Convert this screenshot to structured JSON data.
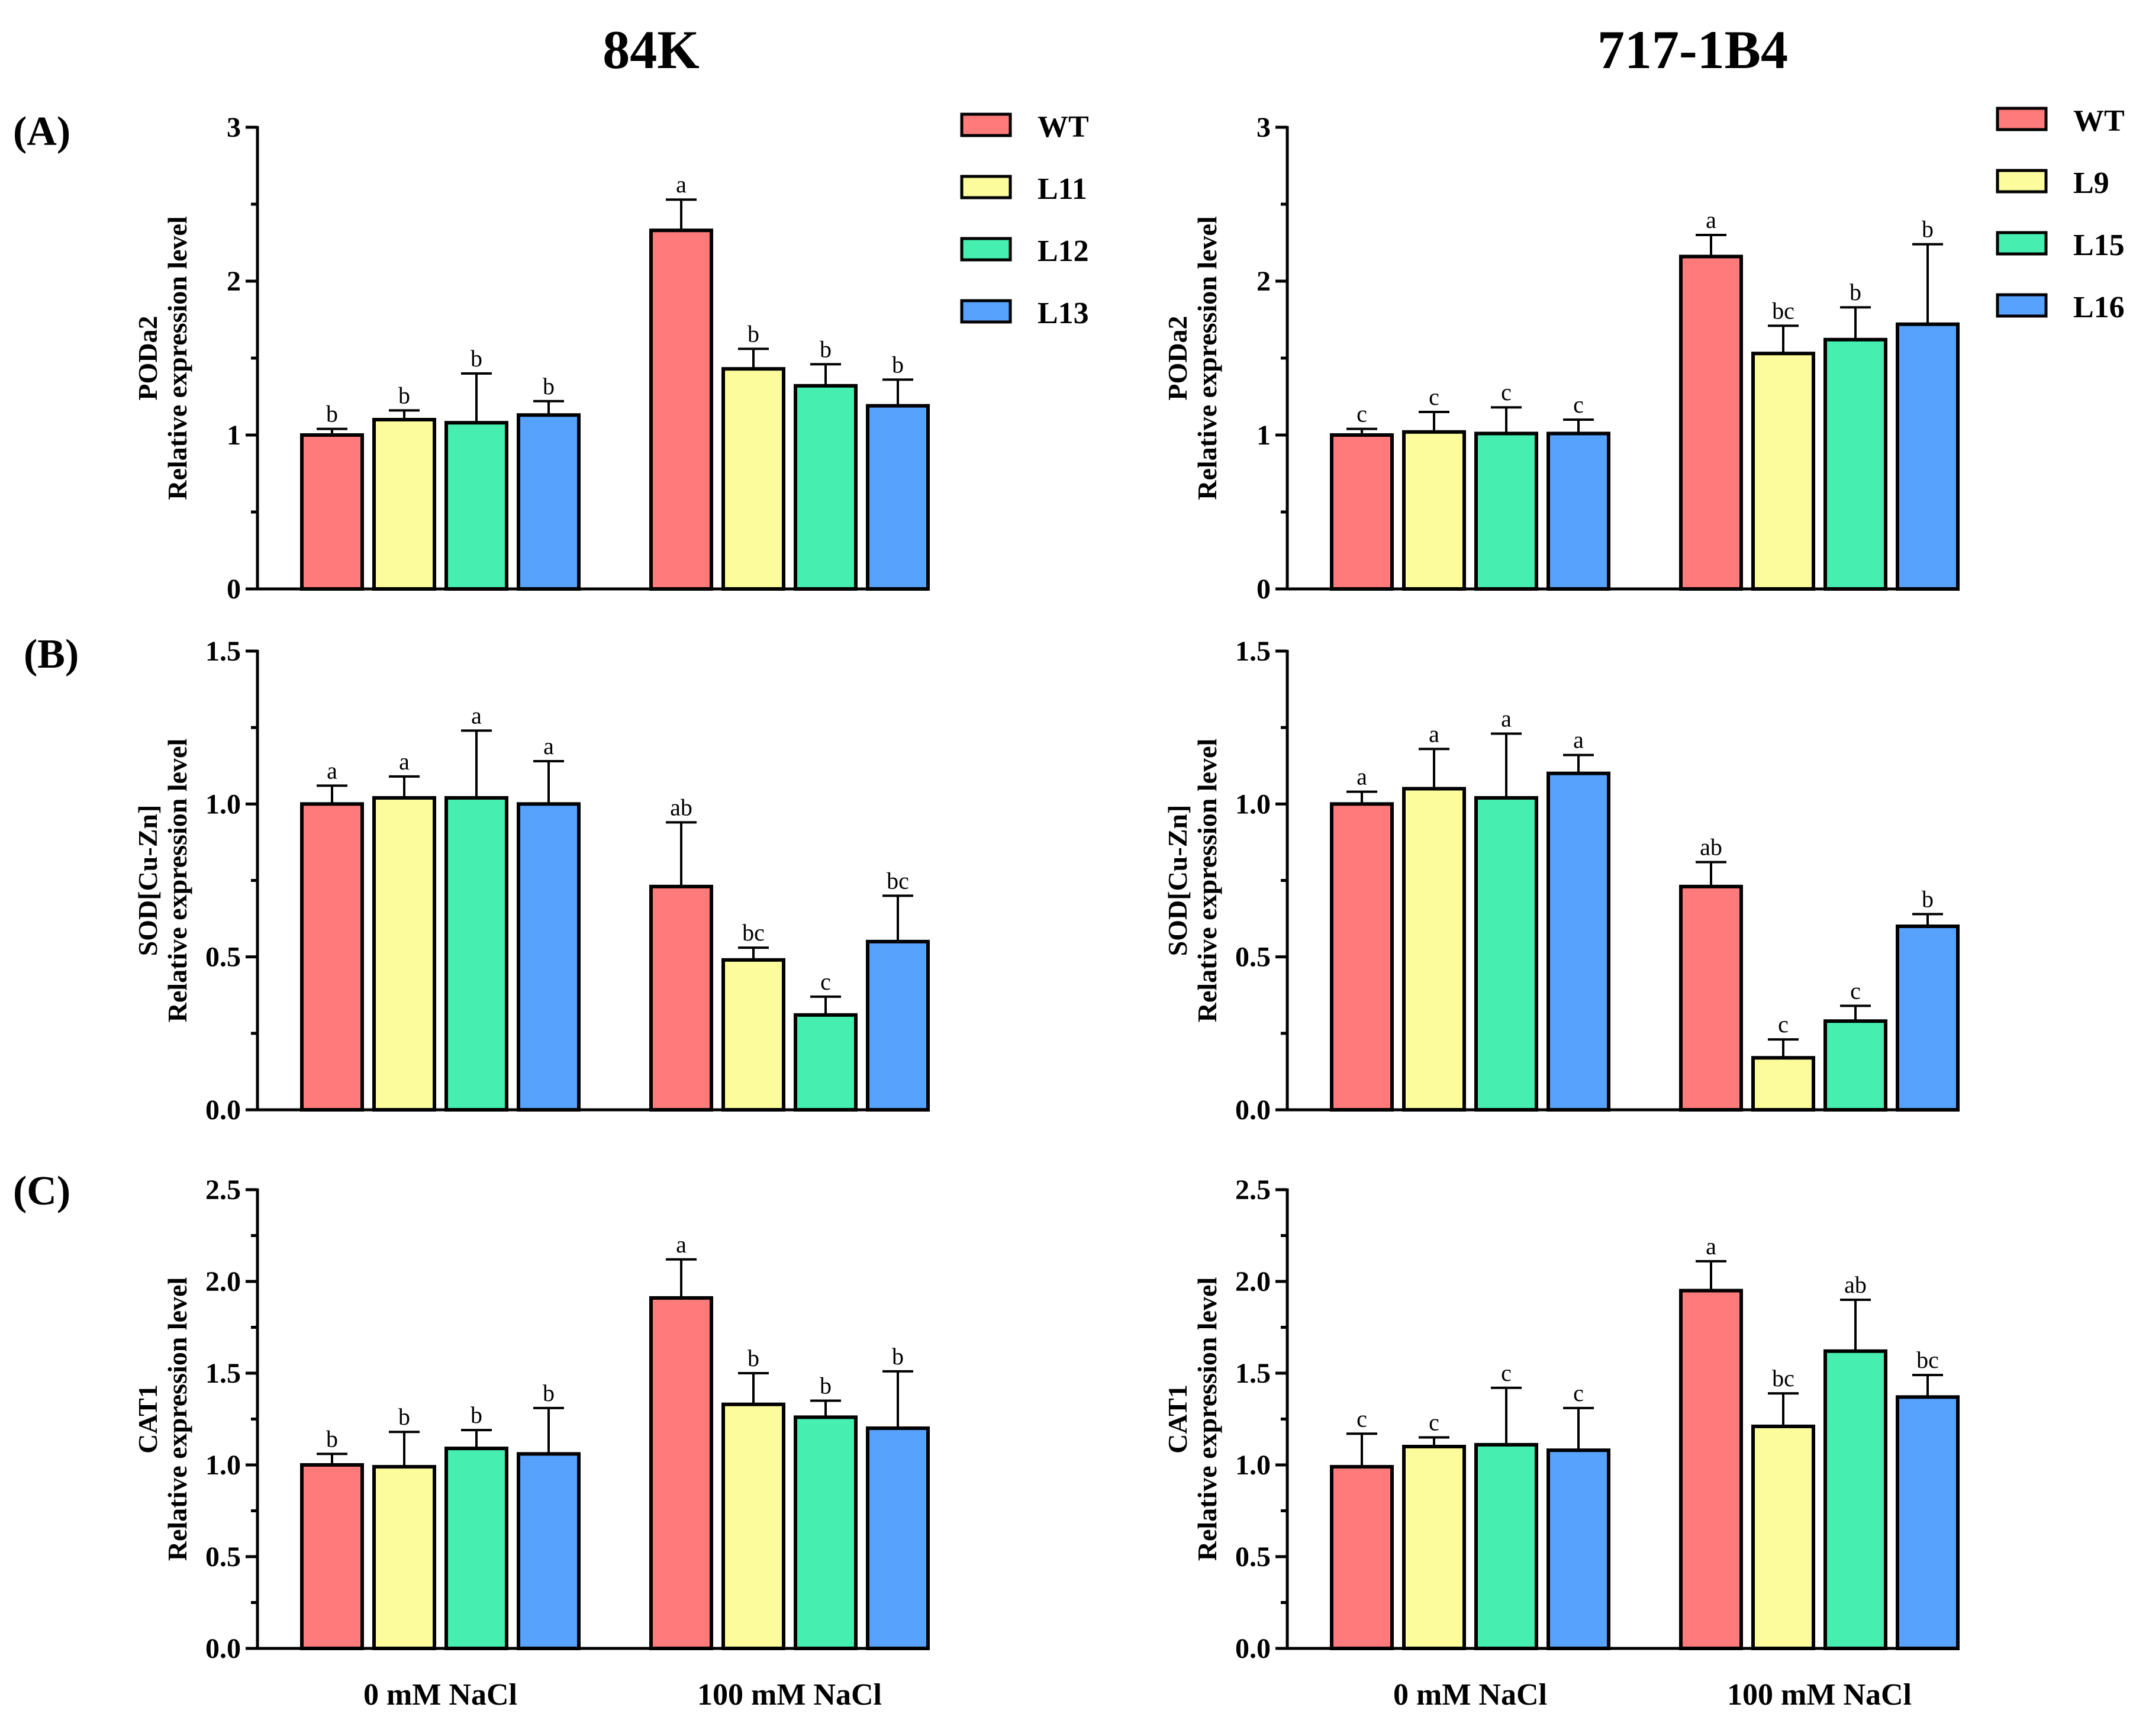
{
  "columns": [
    "84K",
    "717-1B4"
  ],
  "panel_labels": [
    "(A)",
    "(B)",
    "(C)"
  ],
  "groups": [
    "0 mM NaCl",
    "100 mM NaCl"
  ],
  "colors": [
    "#ff7b7b",
    "#fcfc9c",
    "#46eeaf",
    "#56a2fd"
  ],
  "legends": [
    [
      "WT",
      "L11",
      "L12",
      "L13"
    ],
    [
      "WT",
      "L9",
      "L15",
      "L16"
    ]
  ],
  "chart_data": [
    {
      "type": "bar",
      "column": "84K",
      "row": "(A)",
      "ylabel": [
        "PODa2",
        "Relative expression level"
      ],
      "ylim": [
        0,
        3
      ],
      "yticks": [
        0,
        1,
        2,
        3
      ],
      "tick_decimals": 0,
      "categories": [
        "0 mM NaCl",
        "100 mM NaCl"
      ],
      "series": [
        {
          "name": "WT",
          "values": [
            1.0,
            2.33
          ],
          "errors": [
            0.04,
            0.2
          ],
          "letters": [
            "b",
            "a"
          ]
        },
        {
          "name": "L11",
          "values": [
            1.1,
            1.43
          ],
          "errors": [
            0.06,
            0.13
          ],
          "letters": [
            "b",
            "b"
          ]
        },
        {
          "name": "L12",
          "values": [
            1.08,
            1.32
          ],
          "errors": [
            0.32,
            0.14
          ],
          "letters": [
            "b",
            "b"
          ]
        },
        {
          "name": "L13",
          "values": [
            1.13,
            1.19
          ],
          "errors": [
            0.09,
            0.17
          ],
          "letters": [
            "b",
            "b"
          ]
        }
      ]
    },
    {
      "type": "bar",
      "column": "717-1B4",
      "row": "(A)",
      "ylabel": [
        "PODa2",
        "Relative expression level"
      ],
      "ylim": [
        0,
        3
      ],
      "yticks": [
        0,
        1,
        2,
        3
      ],
      "tick_decimals": 0,
      "categories": [
        "0 mM NaCl",
        "100 mM NaCl"
      ],
      "series": [
        {
          "name": "WT",
          "values": [
            1.0,
            2.16
          ],
          "errors": [
            0.04,
            0.14
          ],
          "letters": [
            "c",
            "a"
          ]
        },
        {
          "name": "L9",
          "values": [
            1.02,
            1.53
          ],
          "errors": [
            0.13,
            0.18
          ],
          "letters": [
            "c",
            "bc"
          ]
        },
        {
          "name": "L15",
          "values": [
            1.01,
            1.62
          ],
          "errors": [
            0.17,
            0.21
          ],
          "letters": [
            "c",
            "b"
          ]
        },
        {
          "name": "L16",
          "values": [
            1.01,
            1.72
          ],
          "errors": [
            0.09,
            0.52
          ],
          "letters": [
            "c",
            "b"
          ]
        }
      ]
    },
    {
      "type": "bar",
      "column": "84K",
      "row": "(B)",
      "ylabel": [
        "SOD[Cu-Zn]",
        "Relative expression level"
      ],
      "ylim": [
        0,
        1.5
      ],
      "yticks": [
        0,
        0.5,
        1.0,
        1.5
      ],
      "tick_decimals": 1,
      "categories": [
        "0 mM NaCl",
        "100 mM NaCl"
      ],
      "series": [
        {
          "name": "WT",
          "values": [
            1.0,
            0.73
          ],
          "errors": [
            0.06,
            0.21
          ],
          "letters": [
            "a",
            "ab"
          ]
        },
        {
          "name": "L11",
          "values": [
            1.02,
            0.49
          ],
          "errors": [
            0.07,
            0.04
          ],
          "letters": [
            "a",
            "bc"
          ]
        },
        {
          "name": "L12",
          "values": [
            1.02,
            0.31
          ],
          "errors": [
            0.22,
            0.06
          ],
          "letters": [
            "a",
            "c"
          ]
        },
        {
          "name": "L13",
          "values": [
            1.0,
            0.55
          ],
          "errors": [
            0.14,
            0.15
          ],
          "letters": [
            "a",
            "bc"
          ]
        }
      ]
    },
    {
      "type": "bar",
      "column": "717-1B4",
      "row": "(B)",
      "ylabel": [
        "SOD[Cu-Zn]",
        "Relative expression level"
      ],
      "ylim": [
        0,
        1.5
      ],
      "yticks": [
        0,
        0.5,
        1.0,
        1.5
      ],
      "tick_decimals": 1,
      "categories": [
        "0 mM NaCl",
        "100 mM NaCl"
      ],
      "series": [
        {
          "name": "WT",
          "values": [
            1.0,
            0.73
          ],
          "errors": [
            0.04,
            0.08
          ],
          "letters": [
            "a",
            "ab"
          ]
        },
        {
          "name": "L9",
          "values": [
            1.05,
            0.17
          ],
          "errors": [
            0.13,
            0.06
          ],
          "letters": [
            "a",
            "c"
          ]
        },
        {
          "name": "L15",
          "values": [
            1.02,
            0.29
          ],
          "errors": [
            0.21,
            0.05
          ],
          "letters": [
            "a",
            "c"
          ]
        },
        {
          "name": "L16",
          "values": [
            1.1,
            0.6
          ],
          "errors": [
            0.06,
            0.04
          ],
          "letters": [
            "a",
            "b"
          ]
        }
      ]
    },
    {
      "type": "bar",
      "column": "84K",
      "row": "(C)",
      "ylabel": [
        "CAT1",
        "Relative expression level"
      ],
      "ylim": [
        0,
        2.5
      ],
      "yticks": [
        0,
        0.5,
        1.0,
        1.5,
        2.0,
        2.5
      ],
      "tick_decimals": 1,
      "categories": [
        "0 mM NaCl",
        "100 mM NaCl"
      ],
      "series": [
        {
          "name": "WT",
          "values": [
            1.0,
            1.91
          ],
          "errors": [
            0.06,
            0.21
          ],
          "letters": [
            "b",
            "a"
          ]
        },
        {
          "name": "L11",
          "values": [
            0.99,
            1.33
          ],
          "errors": [
            0.19,
            0.17
          ],
          "letters": [
            "b",
            "b"
          ]
        },
        {
          "name": "L12",
          "values": [
            1.09,
            1.26
          ],
          "errors": [
            0.1,
            0.09
          ],
          "letters": [
            "b",
            "b"
          ]
        },
        {
          "name": "L13",
          "values": [
            1.06,
            1.2
          ],
          "errors": [
            0.25,
            0.31
          ],
          "letters": [
            "b",
            "b"
          ]
        }
      ]
    },
    {
      "type": "bar",
      "column": "717-1B4",
      "row": "(C)",
      "ylabel": [
        "CAT1",
        "Relative expression level"
      ],
      "ylim": [
        0,
        2.5
      ],
      "yticks": [
        0,
        0.5,
        1.0,
        1.5,
        2.0,
        2.5
      ],
      "tick_decimals": 1,
      "categories": [
        "0 mM NaCl",
        "100 mM NaCl"
      ],
      "series": [
        {
          "name": "WT",
          "values": [
            0.99,
            1.95
          ],
          "errors": [
            0.18,
            0.16
          ],
          "letters": [
            "c",
            "a"
          ]
        },
        {
          "name": "L9",
          "values": [
            1.1,
            1.21
          ],
          "errors": [
            0.05,
            0.18
          ],
          "letters": [
            "c",
            "bc"
          ]
        },
        {
          "name": "L15",
          "values": [
            1.11,
            1.62
          ],
          "errors": [
            0.31,
            0.28
          ],
          "letters": [
            "c",
            "ab"
          ]
        },
        {
          "name": "L16",
          "values": [
            1.08,
            1.37
          ],
          "errors": [
            0.23,
            0.12
          ],
          "letters": [
            "c",
            "bc"
          ]
        }
      ]
    }
  ]
}
